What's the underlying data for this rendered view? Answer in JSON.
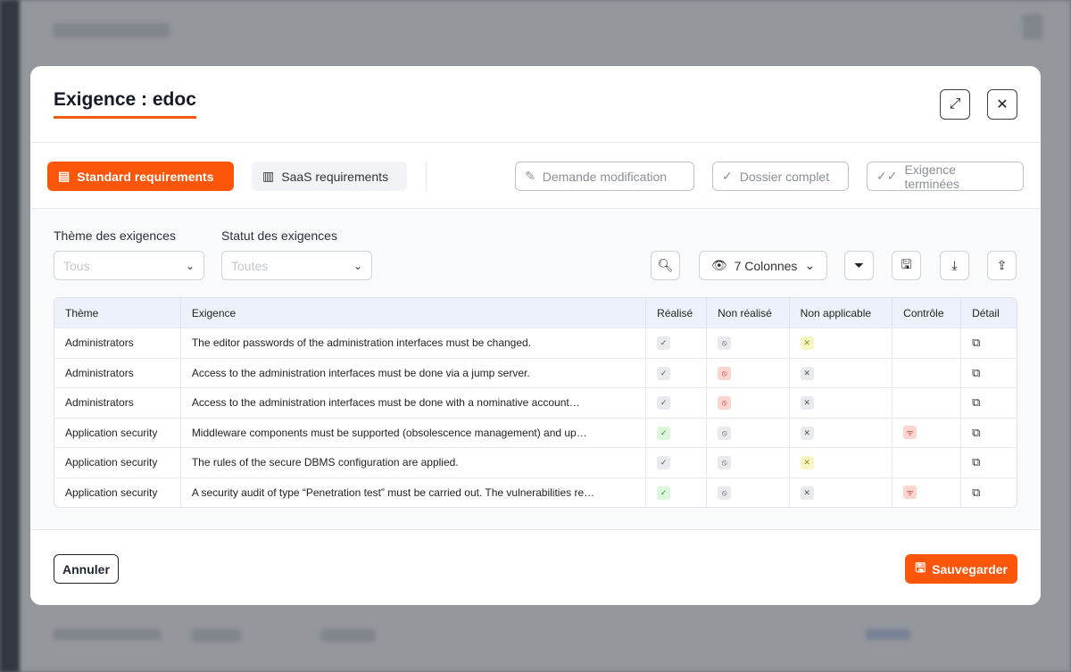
{
  "modal": {
    "title": "Exigence : edoc"
  },
  "tabs": [
    {
      "label": "Standard requirements",
      "icon": "book-icon",
      "active": true
    },
    {
      "label": "SaaS requirements",
      "icon": "building-icon",
      "active": false
    }
  ],
  "actions": [
    {
      "label": "Demande modification",
      "icon": "pencil-icon"
    },
    {
      "label": "Dossier complet",
      "icon": "check-icon"
    },
    {
      "label": "Exigence terminées",
      "icon": "double-check-icon"
    }
  ],
  "filters": {
    "theme": {
      "label": "Thème des exigences",
      "placeholder": "Tous"
    },
    "status": {
      "label": "Statut des exigences",
      "placeholder": "Toutes"
    }
  },
  "toolbar": {
    "columns_label": "7 Colonnes"
  },
  "table": {
    "headers": [
      "Thème",
      "Exigence",
      "Réalisé",
      "Non réalisé",
      "Non applicable",
      "Contrôle",
      "Détail"
    ],
    "rows": [
      {
        "theme": "Administrators",
        "exigence": "The editor passwords of the administration interfaces must be changed.",
        "realise": "grey",
        "non_realise": "grey",
        "non_applicable": "yellow",
        "controle": ""
      },
      {
        "theme": "Administrators",
        "exigence": "Access to the administration interfaces must be done via a jump server.",
        "realise": "grey",
        "non_realise": "red",
        "non_applicable": "grey",
        "controle": ""
      },
      {
        "theme": "Administrators",
        "exigence": "Access to the administration interfaces must be done with a nominative account…",
        "realise": "grey",
        "non_realise": "red",
        "non_applicable": "grey",
        "controle": ""
      },
      {
        "theme": "Application security",
        "exigence": "Middleware components must be supported (obsolescence management) and up…",
        "realise": "green",
        "non_realise": "grey",
        "non_applicable": "grey",
        "controle": "red"
      },
      {
        "theme": "Application security",
        "exigence": "The rules of the secure DBMS configuration are applied.",
        "realise": "grey",
        "non_realise": "grey",
        "non_applicable": "yellow",
        "controle": ""
      },
      {
        "theme": "Application security",
        "exigence": "A security audit of type “Penetration test” must be carried out. The vulnerabilities re…",
        "realise": "green",
        "non_realise": "grey",
        "non_applicable": "grey",
        "controle": "red"
      }
    ]
  },
  "footer": {
    "cancel": "Annuler",
    "save": "Sauvegarder"
  },
  "colors": {
    "accent": "#fb560a"
  }
}
